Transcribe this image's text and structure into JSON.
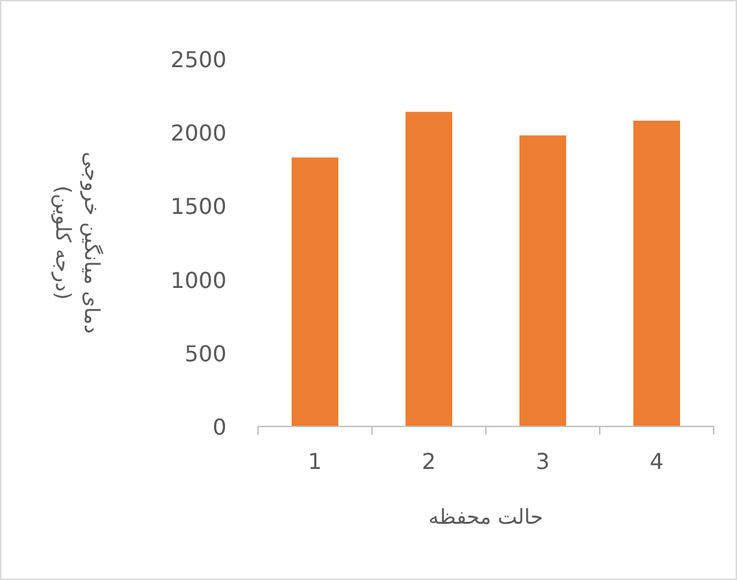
{
  "chart_data": {
    "type": "bar",
    "ylabel": "دمای میانگین خروجی\n(درجه کلوین)",
    "xlabel": "حالت محفظه",
    "categories": [
      "1",
      "2",
      "3",
      "4"
    ],
    "values": [
      1830,
      2140,
      1980,
      2080
    ],
    "color": "#ed7d31",
    "ylim": [
      0,
      2500
    ],
    "yticks": [
      0,
      500,
      1000,
      1500,
      2000,
      2500
    ]
  }
}
